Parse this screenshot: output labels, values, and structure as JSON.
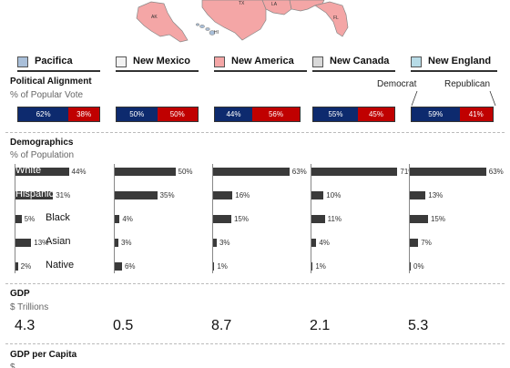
{
  "map": {
    "state_labels": [
      "AK",
      "TX",
      "LA",
      "HI",
      "FL"
    ],
    "colors": {
      "new_america": "#f4a6a6",
      "pacifica": "#a9bfd9",
      "border": "#888888"
    }
  },
  "regions": [
    {
      "name": "Pacifica",
      "color": "#a9bfd9"
    },
    {
      "name": "New Mexico",
      "color": "#f2f2f2"
    },
    {
      "name": "New America",
      "color": "#f4a6a6"
    },
    {
      "name": "New Canada",
      "color": "#d9d9d9"
    },
    {
      "name": "New England",
      "color": "#b7dbe6"
    }
  ],
  "political": {
    "title": "Political Alignment",
    "subtitle": "% of Popular Vote",
    "legend_dem": "Democrat",
    "legend_rep": "Republican",
    "colors": {
      "dem": "#0d2a6e",
      "rep": "#c00000"
    }
  },
  "demographics": {
    "title": "Demographics",
    "subtitle": "% of Population",
    "categories": [
      "White",
      "Hispanic",
      "Black",
      "Asian",
      "Native"
    ]
  },
  "gdp": {
    "title": "GDP",
    "subtitle": "$ Trillions",
    "values": [
      "4.3",
      "0.5",
      "8.7",
      "2.1",
      "5.3"
    ]
  },
  "gdp_per_capita": {
    "title": "GDP per Capita",
    "subtitle": "$"
  },
  "chart_data": [
    {
      "type": "bar",
      "title": "Political Alignment",
      "subtitle": "% of Popular Vote",
      "stacked": true,
      "categories": [
        "Pacifica",
        "New Mexico",
        "New America",
        "New Canada",
        "New England"
      ],
      "series": [
        {
          "name": "Democrat",
          "values": [
            62,
            50,
            44,
            55,
            59
          ],
          "labels": [
            "62%",
            "50%",
            "44%",
            "55%",
            "59%"
          ]
        },
        {
          "name": "Republican",
          "values": [
            38,
            50,
            56,
            45,
            41
          ],
          "labels": [
            "38%",
            "50%",
            "56%",
            "45%",
            "41%"
          ]
        }
      ]
    },
    {
      "type": "bar",
      "title": "Demographics",
      "subtitle": "% of Population",
      "orientation": "horizontal",
      "categories": [
        "White",
        "Hispanic",
        "Black",
        "Asian",
        "Native"
      ],
      "series": [
        {
          "name": "Pacifica",
          "values": [
            44,
            31,
            5,
            13,
            2
          ],
          "labels": [
            "44%",
            "31%",
            "5%",
            "13%",
            "2%"
          ]
        },
        {
          "name": "New Mexico",
          "values": [
            50,
            35,
            4,
            3,
            6
          ],
          "labels": [
            "50%",
            "35%",
            "4%",
            "3%",
            "6%"
          ]
        },
        {
          "name": "New America",
          "values": [
            63,
            16,
            15,
            3,
            1
          ],
          "labels": [
            "63%",
            "16%",
            "15%",
            "3%",
            "1%"
          ]
        },
        {
          "name": "New Canada",
          "values": [
            71,
            10,
            11,
            4,
            1
          ],
          "labels": [
            "71%",
            "10%",
            "11%",
            "4%",
            "1%"
          ]
        },
        {
          "name": "New England",
          "values": [
            63,
            13,
            15,
            7,
            0
          ],
          "labels": [
            "63%",
            "13%",
            "15%",
            "7%",
            "0%"
          ]
        }
      ],
      "xlim": [
        0,
        100
      ]
    },
    {
      "type": "table",
      "title": "GDP",
      "subtitle": "$ Trillions",
      "categories": [
        "Pacifica",
        "New Mexico",
        "New America",
        "New Canada",
        "New England"
      ],
      "values": [
        4.3,
        0.5,
        8.7,
        2.1,
        5.3
      ]
    }
  ]
}
